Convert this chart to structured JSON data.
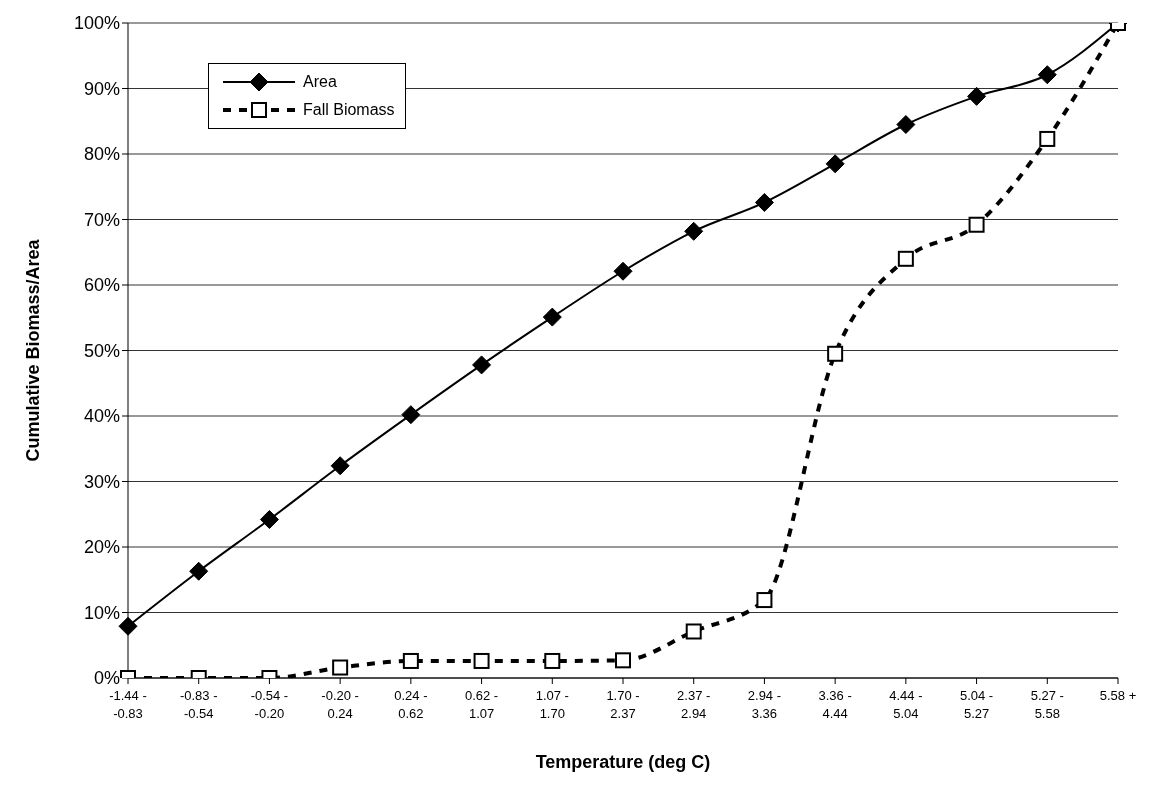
{
  "chart_data": {
    "type": "line",
    "xlabel": "Temperature (deg C)",
    "ylabel": "Cumulative Biomass/Area",
    "categories": [
      "-1.44 - -0.83",
      "-0.83 - -0.54",
      "-0.54 - -0.20",
      "-0.20 - 0.24",
      "0.24 - 0.62",
      "0.62 - 1.07",
      "1.07 - 1.70",
      "1.70 - 2.37",
      "2.37 - 2.94",
      "2.94 - 3.36",
      "3.36 - 4.44",
      "4.44 - 5.04",
      "5.04 - 5.27",
      "5.27 - 5.58",
      "5.58 +"
    ],
    "series": [
      {
        "name": "Area",
        "color": "#000000",
        "marker": "diamond",
        "line_style": "solid",
        "values": [
          7.9,
          16.3,
          24.2,
          32.4,
          40.2,
          47.8,
          55.1,
          62.1,
          68.2,
          72.6,
          78.5,
          84.5,
          88.8,
          92.1,
          100
        ]
      },
      {
        "name": "Fall Biomass",
        "color": "#000000",
        "marker": "square",
        "line_style": "dashed",
        "values": [
          0,
          0,
          0,
          1.6,
          2.6,
          2.6,
          2.6,
          2.7,
          7.1,
          11.9,
          49.5,
          64.0,
          69.2,
          82.3,
          100
        ]
      }
    ],
    "ylim": [
      0,
      100
    ],
    "yticks": [
      {
        "value": 0,
        "label": "0%"
      },
      {
        "value": 10,
        "label": "10%"
      },
      {
        "value": 20,
        "label": "20%"
      },
      {
        "value": 30,
        "label": "30%"
      },
      {
        "value": 40,
        "label": "40%"
      },
      {
        "value": 50,
        "label": "50%"
      },
      {
        "value": 60,
        "label": "60%"
      },
      {
        "value": 70,
        "label": "70%"
      },
      {
        "value": 80,
        "label": "80%"
      },
      {
        "value": 90,
        "label": "90%"
      },
      {
        "value": 100,
        "label": "100%"
      }
    ],
    "grid": "y",
    "legend": "top left"
  }
}
